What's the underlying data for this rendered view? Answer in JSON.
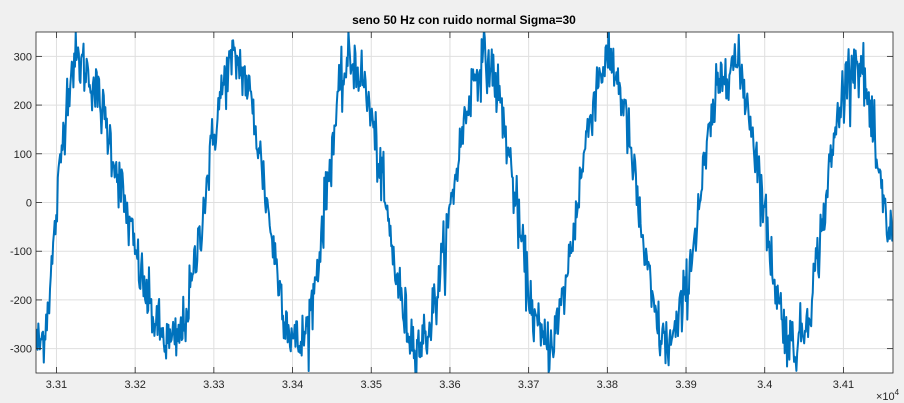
{
  "chart_data": {
    "type": "line",
    "title": "seno 50 Hz con ruido normal Sigma=30",
    "xlabel": "",
    "ylabel": "",
    "x_exponent_label": "×10",
    "x_exponent_power": "4",
    "xlim": [
      3.3074,
      3.4163
    ],
    "ylim": [
      -350,
      350
    ],
    "x_ticks": [
      3.31,
      3.32,
      3.33,
      3.34,
      3.35,
      3.36,
      3.37,
      3.38,
      3.39,
      3.4,
      3.41
    ],
    "x_tick_labels": [
      "3.31",
      "3.32",
      "3.33",
      "3.34",
      "3.35",
      "3.36",
      "3.37",
      "3.38",
      "3.39",
      "3.4",
      "3.41"
    ],
    "y_ticks": [
      -300,
      -200,
      -100,
      0,
      100,
      200,
      300
    ],
    "y_tick_labels": [
      "-300",
      "-200",
      "-100",
      "0",
      "100",
      "200",
      "300"
    ],
    "grid": true,
    "series": [
      {
        "color": "#0072bd",
        "signal": {
          "amplitude": 290,
          "peak_x": [
            3.3124,
            3.3327,
            3.3475,
            3.3644,
            3.3801,
            3.3958,
            3.4116
          ],
          "trough_x": [
            3.3078,
            3.3248,
            3.3408,
            3.356,
            3.3723,
            3.3876,
            3.4038
          ],
          "end_y": -65,
          "noise_sigma": 30,
          "samples": 1100
        }
      }
    ]
  }
}
